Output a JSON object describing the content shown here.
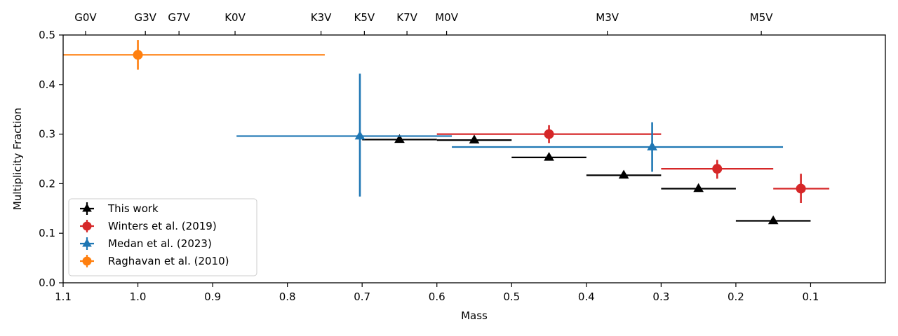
{
  "chart_data": {
    "type": "scatter",
    "title": "",
    "xlabel": "Mass",
    "ylabel": "Multiplicity Fraction",
    "xlim": [
      1.1,
      0.0
    ],
    "ylim": [
      0.0,
      0.5
    ],
    "x_ticks": [
      1.1,
      1.0,
      0.9,
      0.8,
      0.7,
      0.6,
      0.5,
      0.4,
      0.3,
      0.2,
      0.1
    ],
    "x_tick_labels": [
      "1.1",
      "1.0",
      "0.9",
      "0.8",
      "0.7",
      "0.6",
      "0.5",
      "0.4",
      "0.3",
      "0.2",
      "0.1"
    ],
    "y_ticks": [
      0.0,
      0.1,
      0.2,
      0.3,
      0.4,
      0.5
    ],
    "y_tick_labels": [
      "0.0",
      "0.1",
      "0.2",
      "0.3",
      "0.4",
      "0.5"
    ],
    "top_axis": {
      "ticks": [
        {
          "label": "G0V",
          "mass": 1.07
        },
        {
          "label": "G3V",
          "mass": 0.99
        },
        {
          "label": "G7V",
          "mass": 0.945
        },
        {
          "label": "K0V",
          "mass": 0.87
        },
        {
          "label": "K3V",
          "mass": 0.755
        },
        {
          "label": "K5V",
          "mass": 0.697
        },
        {
          "label": "K7V",
          "mass": 0.64
        },
        {
          "label": "M0V",
          "mass": 0.587
        },
        {
          "label": "M3V",
          "mass": 0.372
        },
        {
          "label": "M5V",
          "mass": 0.166
        }
      ]
    },
    "legend_position": "bottom-left",
    "series": [
      {
        "name": "This work",
        "color": "#000000",
        "marker": "triangle",
        "points": [
          {
            "x": 0.65,
            "y": 0.289,
            "xerr": [
              0.6,
              0.7
            ],
            "yerr": null
          },
          {
            "x": 0.55,
            "y": 0.288,
            "xerr": [
              0.5,
              0.6
            ],
            "yerr": null
          },
          {
            "x": 0.45,
            "y": 0.253,
            "xerr": [
              0.4,
              0.5
            ],
            "yerr": null
          },
          {
            "x": 0.35,
            "y": 0.217,
            "xerr": [
              0.3,
              0.4
            ],
            "yerr": null
          },
          {
            "x": 0.25,
            "y": 0.19,
            "xerr": [
              0.2,
              0.3
            ],
            "yerr": null
          },
          {
            "x": 0.15,
            "y": 0.125,
            "xerr": [
              0.1,
              0.2
            ],
            "yerr": null
          }
        ]
      },
      {
        "name": "Winters et al. (2019)",
        "color": "#d62728",
        "marker": "circle",
        "points": [
          {
            "x": 0.45,
            "y": 0.3,
            "xerr": [
              0.3,
              0.6
            ],
            "yerr": [
              0.282,
              0.318
            ]
          },
          {
            "x": 0.225,
            "y": 0.23,
            "xerr": [
              0.15,
              0.3
            ],
            "yerr": [
              0.21,
              0.248
            ]
          },
          {
            "x": 0.113,
            "y": 0.19,
            "xerr": [
              0.075,
              0.15
            ],
            "yerr": [
              0.161,
              0.22
            ]
          }
        ]
      },
      {
        "name": "Medan et al. (2023)",
        "color": "#1f77b4",
        "marker": "triangle",
        "points": [
          {
            "x": 0.703,
            "y": 0.296,
            "xerr": [
              0.58,
              0.868
            ],
            "yerr": [
              0.174,
              0.422
            ]
          },
          {
            "x": 0.312,
            "y": 0.274,
            "xerr": [
              0.137,
              0.58
            ],
            "yerr": [
              0.224,
              0.324
            ]
          }
        ]
      },
      {
        "name": "Raghavan et al. (2010)",
        "color": "#ff7f0e",
        "marker": "circle",
        "points": [
          {
            "x": 1.0,
            "y": 0.46,
            "xerr": [
              0.75,
              1.1
            ],
            "yerr": [
              0.43,
              0.49
            ]
          }
        ]
      }
    ]
  }
}
